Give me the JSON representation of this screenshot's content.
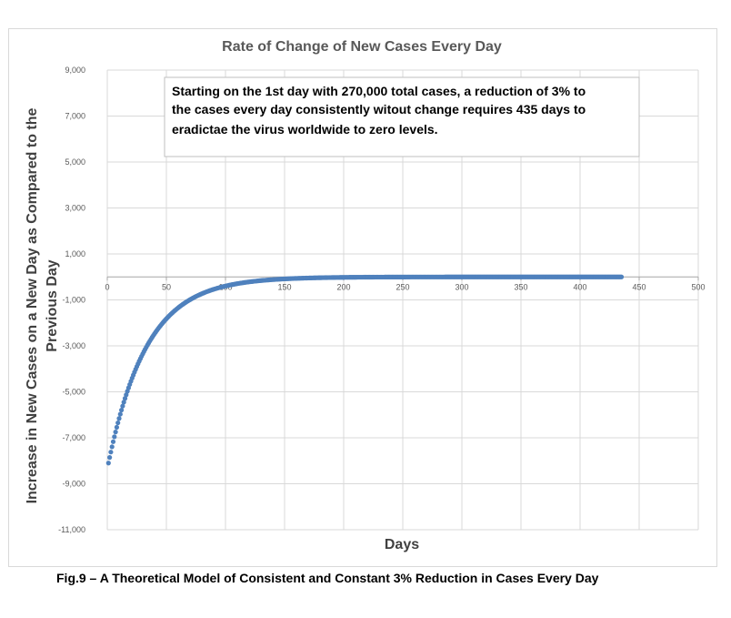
{
  "chart_data": {
    "type": "scatter",
    "title": "Rate of Change of New Cases Every Day",
    "xlabel": "Days",
    "ylabel_lines": [
      "Increase in New Cases on a New Day as Compared to the",
      "Previous Day"
    ],
    "xlim": [
      0,
      500
    ],
    "ylim": [
      -11000,
      9000
    ],
    "x_ticks": [
      0,
      50,
      100,
      150,
      200,
      250,
      300,
      350,
      400,
      450,
      500
    ],
    "y_ticks": [
      9000,
      7000,
      5000,
      3000,
      1000,
      -1000,
      -3000,
      -5000,
      -7000,
      -9000,
      -11000
    ],
    "y_tick_labels": [
      "9,000",
      "7,000",
      "5,000",
      "3,000",
      "1,000",
      "-1,000",
      "-3,000",
      "-5,000",
      "-7,000",
      "-9,000",
      "-11,000"
    ],
    "series": [
      {
        "model": {
          "initial_total": 270000,
          "daily_reduction": 0.03,
          "x_start": 1,
          "x_end": 435
        },
        "color": "#4f81bd"
      }
    ],
    "annotation_lines": [
      "Starting on the 1st day with 270,000 total cases, a reduction of 3% to",
      "the cases every day consistently witout change requires 435 days to",
      "eradictae the virus worldwide to zero levels."
    ],
    "grid": true
  },
  "caption": "Fig.9 – A Theoretical Model of Consistent and Constant 3% Reduction in Cases Every Day"
}
